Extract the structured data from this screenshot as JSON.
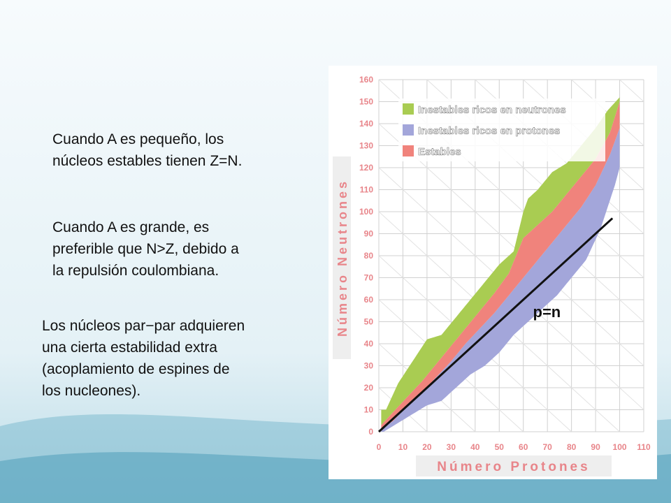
{
  "slide": {
    "paragraph_1": "Cuando A es pequeño, los\nnúcleos estables tienen Z=N.",
    "paragraph_2": "Cuando A es grande, es\npreferible que N>Z, debido a\nla repulsión coulombiana.",
    "paragraph_3": "Los núcleos par−par adquieren\nuna cierta estabilidad extra\n(acoplamiento de espines de\nlos nucleones)."
  },
  "colors": {
    "neutron_rich": "#a9cc52",
    "proton_rich": "#a3a6da",
    "stable": "#f0837c",
    "axis_text": "#e8858a",
    "grid": "#d0d0d0",
    "background_wave": "#7fbcd0"
  },
  "chart_data": {
    "type": "scatter",
    "xlabel": "Número Protones",
    "ylabel": "Número Neutrones",
    "xlim": [
      0,
      110
    ],
    "ylim": [
      0,
      160
    ],
    "x_ticks": [
      0,
      10,
      20,
      30,
      40,
      50,
      60,
      70,
      80,
      90,
      100,
      110
    ],
    "y_ticks": [
      0,
      10,
      20,
      30,
      40,
      50,
      60,
      70,
      80,
      90,
      100,
      110,
      120,
      130,
      140,
      150,
      160
    ],
    "grid": true,
    "legend_position": "top-left",
    "legend": [
      {
        "key": "neutron_rich",
        "label": "Inestables ricos en neutrones"
      },
      {
        "key": "proton_rich",
        "label": "Inestables ricos en protones"
      },
      {
        "key": "stable",
        "label": "Estables"
      }
    ],
    "series": [
      {
        "key": "neutron_rich",
        "x": [
          3,
          8,
          14,
          20,
          26,
          32,
          38,
          44,
          50,
          56,
          60,
          62,
          66,
          72,
          78,
          84,
          90,
          95,
          100
        ],
        "y_upper": [
          10,
          22,
          32,
          42,
          44,
          52,
          60,
          68,
          76,
          82,
          100,
          106,
          110,
          118,
          122,
          130,
          138,
          146,
          152
        ]
      },
      {
        "key": "stable",
        "x": [
          1,
          6,
          12,
          18,
          24,
          30,
          36,
          42,
          48,
          54,
          60,
          66,
          72,
          78,
          84,
          90,
          96,
          100
        ],
        "y_low": [
          1,
          5,
          12,
          18,
          25,
          32,
          40,
          47,
          54,
          62,
          70,
          78,
          86,
          94,
          102,
          112,
          126,
          138
        ],
        "y_high": [
          3,
          9,
          16,
          23,
          31,
          39,
          47,
          55,
          63,
          72,
          88,
          94,
          100,
          108,
          116,
          124,
          136,
          150
        ]
      },
      {
        "key": "proton_rich",
        "x": [
          2,
          8,
          14,
          20,
          26,
          32,
          38,
          44,
          50,
          56,
          62,
          68,
          74,
          80,
          86,
          92,
          98,
          100
        ],
        "y_lower": [
          0,
          4,
          8,
          12,
          14,
          20,
          26,
          30,
          36,
          44,
          50,
          56,
          62,
          70,
          78,
          92,
          112,
          120
        ]
      }
    ],
    "reference_line": {
      "label": "p=n",
      "x": [
        0,
        97
      ],
      "y": [
        0,
        97
      ]
    }
  }
}
